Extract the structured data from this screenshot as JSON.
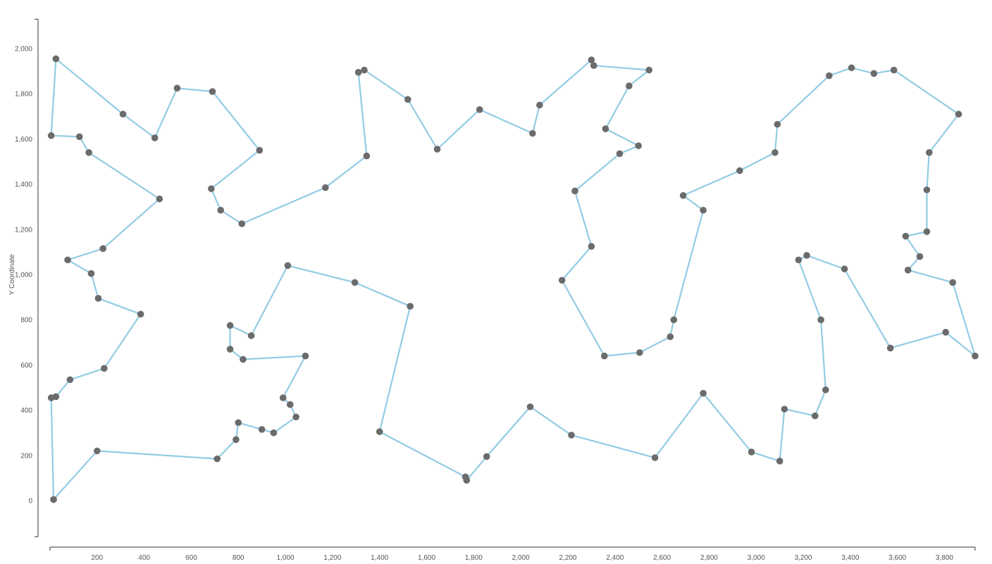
{
  "chart_data": {
    "type": "line",
    "title": "",
    "xlabel": "",
    "ylabel": "Y Coordinate",
    "xlim": [
      0,
      3930
    ],
    "ylim": [
      -160,
      2130
    ],
    "x_ticks": [
      200,
      400,
      600,
      800,
      1000,
      1200,
      1400,
      1600,
      1800,
      2000,
      2200,
      2400,
      2600,
      2800,
      3000,
      3200,
      3400,
      3600,
      3800
    ],
    "x_tick_labels": [
      "200",
      "400",
      "600",
      "800",
      "1,000",
      "1,200",
      "1,400",
      "1,600",
      "1,800",
      "2,000",
      "2,200",
      "2,400",
      "2,600",
      "2,800",
      "3,000",
      "3,200",
      "3,400",
      "3,600",
      "3,800"
    ],
    "y_ticks": [
      0,
      200,
      400,
      600,
      800,
      1000,
      1200,
      1400,
      1600,
      1800,
      2000
    ],
    "y_tick_labels": [
      "0",
      "200",
      "400",
      "600",
      "800",
      "1,000",
      "1,200",
      "1,400",
      "1,600",
      "1,800",
      "2,000"
    ],
    "grid": false,
    "line_color": "#92cce4",
    "marker_color": "#6b6b6b",
    "series": [
      {
        "points": [
          [
            15,
            5
          ],
          [
            200,
            220
          ],
          [
            710,
            185
          ],
          [
            790,
            270
          ],
          [
            800,
            345
          ],
          [
            900,
            315
          ],
          [
            950,
            300
          ],
          [
            1045,
            370
          ],
          [
            1020,
            425
          ],
          [
            990,
            455
          ],
          [
            1085,
            640
          ],
          [
            820,
            625
          ],
          [
            765,
            670
          ],
          [
            765,
            775
          ],
          [
            855,
            730
          ],
          [
            1010,
            1040
          ],
          [
            1295,
            965
          ],
          [
            1530,
            860
          ],
          [
            1400,
            305
          ],
          [
            1765,
            105
          ],
          [
            1770,
            90
          ],
          [
            1855,
            195
          ],
          [
            2040,
            415
          ],
          [
            2215,
            290
          ],
          [
            2570,
            190
          ],
          [
            2775,
            475
          ],
          [
            2980,
            215
          ],
          [
            3100,
            175
          ],
          [
            3120,
            405
          ],
          [
            3250,
            375
          ],
          [
            3295,
            490
          ],
          [
            3275,
            800
          ],
          [
            3180,
            1065
          ],
          [
            3215,
            1085
          ],
          [
            3375,
            1025
          ],
          [
            3570,
            675
          ],
          [
            3805,
            745
          ],
          [
            3930,
            640
          ],
          [
            3835,
            965
          ],
          [
            3645,
            1020
          ],
          [
            3695,
            1080
          ],
          [
            3635,
            1170
          ],
          [
            3725,
            1190
          ],
          [
            3725,
            1375
          ],
          [
            3735,
            1540
          ],
          [
            3860,
            1710
          ],
          [
            3585,
            1905
          ],
          [
            3500,
            1890
          ],
          [
            3405,
            1915
          ],
          [
            3310,
            1880
          ],
          [
            3090,
            1665
          ],
          [
            3080,
            1540
          ],
          [
            2930,
            1460
          ],
          [
            2690,
            1350
          ],
          [
            2775,
            1285
          ],
          [
            2650,
            800
          ],
          [
            2635,
            725
          ],
          [
            2505,
            655
          ],
          [
            2355,
            640
          ],
          [
            2175,
            975
          ],
          [
            2300,
            1125
          ],
          [
            2230,
            1370
          ],
          [
            2420,
            1535
          ],
          [
            2500,
            1570
          ],
          [
            2360,
            1645
          ],
          [
            2460,
            1835
          ],
          [
            2545,
            1905
          ],
          [
            2310,
            1925
          ],
          [
            2300,
            1950
          ],
          [
            2080,
            1750
          ],
          [
            2050,
            1625
          ],
          [
            1825,
            1730
          ],
          [
            1645,
            1555
          ],
          [
            1520,
            1775
          ],
          [
            1335,
            1905
          ],
          [
            1310,
            1895
          ],
          [
            1345,
            1525
          ],
          [
            1170,
            1385
          ],
          [
            815,
            1225
          ],
          [
            725,
            1285
          ],
          [
            685,
            1380
          ],
          [
            890,
            1550
          ],
          [
            690,
            1810
          ],
          [
            540,
            1825
          ],
          [
            445,
            1605
          ],
          [
            310,
            1710
          ],
          [
            25,
            1955
          ],
          [
            5,
            1615
          ],
          [
            125,
            1610
          ],
          [
            165,
            1540
          ],
          [
            465,
            1335
          ],
          [
            225,
            1115
          ],
          [
            75,
            1065
          ],
          [
            175,
            1005
          ],
          [
            205,
            895
          ],
          [
            385,
            825
          ],
          [
            230,
            585
          ],
          [
            85,
            535
          ],
          [
            25,
            460
          ],
          [
            5,
            455
          ],
          [
            15,
            5
          ]
        ]
      }
    ]
  }
}
